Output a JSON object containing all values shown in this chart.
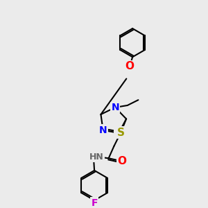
{
  "background_color": "#ebebeb",
  "atom_colors": {
    "N": "#0000ff",
    "O": "#ff0000",
    "S": "#999900",
    "F": "#cc00cc",
    "C": "#000000",
    "H": "#666666"
  },
  "bond_color": "#000000",
  "bond_width": 1.5,
  "font_size": 9
}
